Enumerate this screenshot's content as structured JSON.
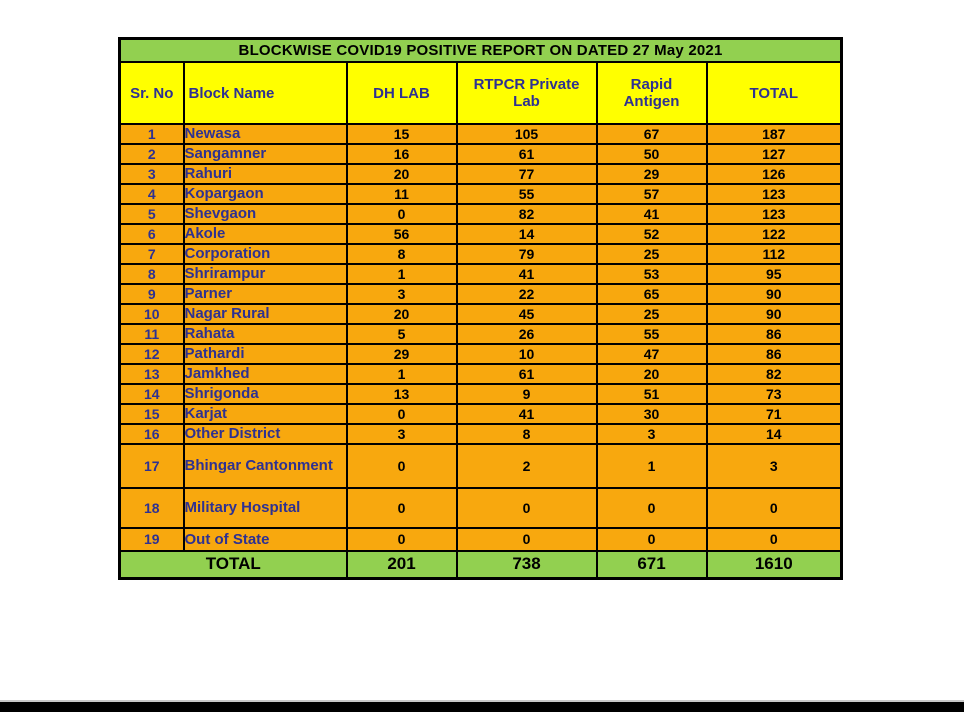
{
  "page": {
    "title": "BLOCKWISE COVID19 POSITIVE REPORT ON DATED 27 May 2021"
  },
  "colors": {
    "green": "#92D050",
    "yellow": "#FFFF00",
    "orange": "#F8A80E",
    "navy": "#2E3192",
    "border": "#000000"
  },
  "table": {
    "columns": [
      "Sr. No",
      "Block Name",
      "DH LAB",
      "RTPCR Private Lab",
      "Rapid Antigen",
      "TOTAL"
    ],
    "rows": [
      {
        "sr": "1",
        "block": "Newasa",
        "dh_lab": "15",
        "rtpcr": "105",
        "rapid": "67",
        "total": "187"
      },
      {
        "sr": "2",
        "block": "Sangamner",
        "dh_lab": "16",
        "rtpcr": "61",
        "rapid": "50",
        "total": "127"
      },
      {
        "sr": "3",
        "block": "Rahuri",
        "dh_lab": "20",
        "rtpcr": "77",
        "rapid": "29",
        "total": "126"
      },
      {
        "sr": "4",
        "block": "Kopargaon",
        "dh_lab": "11",
        "rtpcr": "55",
        "rapid": "57",
        "total": "123"
      },
      {
        "sr": "5",
        "block": "Shevgaon",
        "dh_lab": "0",
        "rtpcr": "82",
        "rapid": "41",
        "total": "123"
      },
      {
        "sr": "6",
        "block": "Akole",
        "dh_lab": "56",
        "rtpcr": "14",
        "rapid": "52",
        "total": "122"
      },
      {
        "sr": "7",
        "block": "Corporation",
        "dh_lab": "8",
        "rtpcr": "79",
        "rapid": "25",
        "total": "112"
      },
      {
        "sr": "8",
        "block": "Shrirampur",
        "dh_lab": "1",
        "rtpcr": "41",
        "rapid": "53",
        "total": "95"
      },
      {
        "sr": "9",
        "block": "Parner",
        "dh_lab": "3",
        "rtpcr": "22",
        "rapid": "65",
        "total": "90"
      },
      {
        "sr": "10",
        "block": "Nagar Rural",
        "dh_lab": "20",
        "rtpcr": "45",
        "rapid": "25",
        "total": "90"
      },
      {
        "sr": "11",
        "block": "Rahata",
        "dh_lab": "5",
        "rtpcr": "26",
        "rapid": "55",
        "total": "86"
      },
      {
        "sr": "12",
        "block": "Pathardi",
        "dh_lab": "29",
        "rtpcr": "10",
        "rapid": "47",
        "total": "86"
      },
      {
        "sr": "13",
        "block": "Jamkhed",
        "dh_lab": "1",
        "rtpcr": "61",
        "rapid": "20",
        "total": "82"
      },
      {
        "sr": "14",
        "block": "Shrigonda",
        "dh_lab": "13",
        "rtpcr": "9",
        "rapid": "51",
        "total": "73"
      },
      {
        "sr": "15",
        "block": "Karjat",
        "dh_lab": "0",
        "rtpcr": "41",
        "rapid": "30",
        "total": "71"
      },
      {
        "sr": "16",
        "block": "Other District",
        "dh_lab": "3",
        "rtpcr": "8",
        "rapid": "3",
        "total": "14"
      },
      {
        "sr": "17",
        "block": "Bhingar Cantonment",
        "dh_lab": "0",
        "rtpcr": "2",
        "rapid": "1",
        "total": "3"
      },
      {
        "sr": "18",
        "block": "Military Hospital",
        "dh_lab": "0",
        "rtpcr": "0",
        "rapid": "0",
        "total": "0"
      },
      {
        "sr": "19",
        "block": "Out of State",
        "dh_lab": "0",
        "rtpcr": "0",
        "rapid": "0",
        "total": "0"
      }
    ],
    "total_row": {
      "label": "TOTAL",
      "dh_lab": "201",
      "rtpcr": "738",
      "rapid": "671",
      "total": "1610"
    }
  }
}
